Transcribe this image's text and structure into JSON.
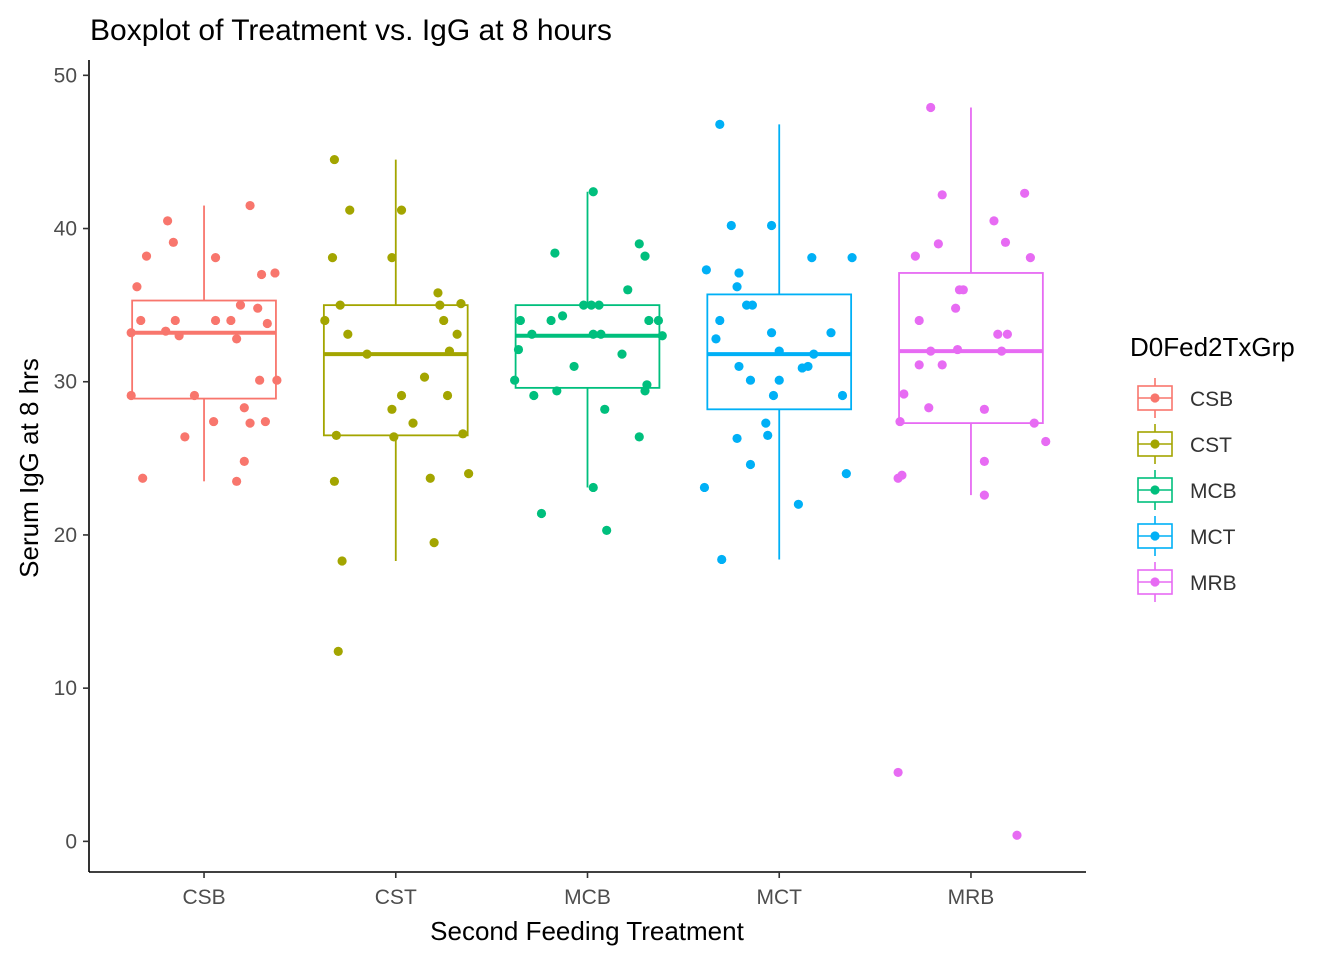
{
  "chart_data": {
    "type": "boxplot",
    "title": "Boxplot of Treatment vs. IgG at 8 hours",
    "xlabel": "Second Feeding Treatment",
    "ylabel": "Serum IgG at 8 hrs",
    "ylim": [
      -2,
      51
    ],
    "yticks": [
      0,
      10,
      20,
      30,
      40,
      50
    ],
    "categories": [
      "CSB",
      "CST",
      "MCB",
      "MCT",
      "MRB"
    ],
    "legend": {
      "title": "D0Fed2TxGrp",
      "position": "right"
    },
    "grid": false,
    "series": [
      {
        "name": "CSB",
        "color": "#F8766D",
        "box": {
          "lower_whisker": 23.5,
          "q1": 28.9,
          "median": 33.2,
          "q3": 35.3,
          "upper_whisker": 41.5
        },
        "points": [
          {
            "dx": -0.38,
            "y": 33.2
          },
          {
            "dx": -0.38,
            "y": 29.1
          },
          {
            "dx": -0.35,
            "y": 36.2
          },
          {
            "dx": -0.32,
            "y": 23.7
          },
          {
            "dx": -0.3,
            "y": 38.2
          },
          {
            "dx": -0.33,
            "y": 34.0
          },
          {
            "dx": -0.19,
            "y": 40.5
          },
          {
            "dx": -0.16,
            "y": 39.1
          },
          {
            "dx": -0.2,
            "y": 33.3
          },
          {
            "dx": -0.15,
            "y": 34.0
          },
          {
            "dx": -0.13,
            "y": 33.0
          },
          {
            "dx": -0.1,
            "y": 26.4
          },
          {
            "dx": -0.05,
            "y": 29.1
          },
          {
            "dx": 0.05,
            "y": 27.4
          },
          {
            "dx": 0.06,
            "y": 34.0
          },
          {
            "dx": 0.06,
            "y": 38.1
          },
          {
            "dx": 0.14,
            "y": 34.0
          },
          {
            "dx": 0.17,
            "y": 32.8
          },
          {
            "dx": 0.17,
            "y": 23.5
          },
          {
            "dx": 0.19,
            "y": 35.0
          },
          {
            "dx": 0.21,
            "y": 24.8
          },
          {
            "dx": 0.21,
            "y": 28.3
          },
          {
            "dx": 0.24,
            "y": 41.5
          },
          {
            "dx": 0.24,
            "y": 27.3
          },
          {
            "dx": 0.28,
            "y": 34.8
          },
          {
            "dx": 0.29,
            "y": 30.1
          },
          {
            "dx": 0.3,
            "y": 37.0
          },
          {
            "dx": 0.32,
            "y": 27.4
          },
          {
            "dx": 0.33,
            "y": 33.8
          },
          {
            "dx": 0.37,
            "y": 37.1
          },
          {
            "dx": 0.38,
            "y": 30.1
          }
        ]
      },
      {
        "name": "CST",
        "color": "#A3A500",
        "box": {
          "lower_whisker": 18.3,
          "q1": 26.5,
          "median": 31.8,
          "q3": 35.0,
          "upper_whisker": 44.5
        },
        "points": [
          {
            "dx": -0.37,
            "y": 34.0
          },
          {
            "dx": -0.33,
            "y": 38.1
          },
          {
            "dx": -0.32,
            "y": 44.5
          },
          {
            "dx": -0.32,
            "y": 23.5
          },
          {
            "dx": -0.31,
            "y": 26.5
          },
          {
            "dx": -0.29,
            "y": 35.0
          },
          {
            "dx": -0.3,
            "y": 12.4
          },
          {
            "dx": -0.28,
            "y": 18.3
          },
          {
            "dx": -0.25,
            "y": 33.1
          },
          {
            "dx": -0.24,
            "y": 41.2
          },
          {
            "dx": -0.15,
            "y": 31.8
          },
          {
            "dx": -0.02,
            "y": 38.1
          },
          {
            "dx": -0.02,
            "y": 28.2
          },
          {
            "dx": -0.01,
            "y": 26.4
          },
          {
            "dx": 0.03,
            "y": 41.2
          },
          {
            "dx": 0.03,
            "y": 29.1
          },
          {
            "dx": 0.09,
            "y": 27.3
          },
          {
            "dx": 0.15,
            "y": 30.3
          },
          {
            "dx": 0.18,
            "y": 23.7
          },
          {
            "dx": 0.2,
            "y": 19.5
          },
          {
            "dx": 0.22,
            "y": 35.8
          },
          {
            "dx": 0.23,
            "y": 35.0
          },
          {
            "dx": 0.25,
            "y": 34.0
          },
          {
            "dx": 0.27,
            "y": 29.1
          },
          {
            "dx": 0.28,
            "y": 32.0
          },
          {
            "dx": 0.32,
            "y": 33.1
          },
          {
            "dx": 0.34,
            "y": 35.1
          },
          {
            "dx": 0.35,
            "y": 26.6
          },
          {
            "dx": 0.38,
            "y": 24.0
          }
        ]
      },
      {
        "name": "MCB",
        "color": "#00BF7D",
        "box": {
          "lower_whisker": 23.1,
          "q1": 29.6,
          "median": 33.0,
          "q3": 35.0,
          "upper_whisker": 42.4
        },
        "points": [
          {
            "dx": -0.38,
            "y": 30.1
          },
          {
            "dx": -0.36,
            "y": 32.1
          },
          {
            "dx": -0.35,
            "y": 34.0
          },
          {
            "dx": -0.29,
            "y": 33.1
          },
          {
            "dx": -0.28,
            "y": 29.1
          },
          {
            "dx": -0.24,
            "y": 21.4
          },
          {
            "dx": -0.19,
            "y": 34.0
          },
          {
            "dx": -0.17,
            "y": 38.4
          },
          {
            "dx": -0.16,
            "y": 29.4
          },
          {
            "dx": -0.13,
            "y": 34.3
          },
          {
            "dx": -0.07,
            "y": 31.0
          },
          {
            "dx": -0.02,
            "y": 35.0
          },
          {
            "dx": 0.02,
            "y": 35.0
          },
          {
            "dx": 0.03,
            "y": 42.4
          },
          {
            "dx": 0.03,
            "y": 23.1
          },
          {
            "dx": 0.03,
            "y": 33.1
          },
          {
            "dx": 0.06,
            "y": 35.0
          },
          {
            "dx": 0.07,
            "y": 33.1
          },
          {
            "dx": 0.09,
            "y": 28.2
          },
          {
            "dx": 0.1,
            "y": 20.3
          },
          {
            "dx": 0.18,
            "y": 31.8
          },
          {
            "dx": 0.21,
            "y": 36.0
          },
          {
            "dx": 0.27,
            "y": 39.0
          },
          {
            "dx": 0.27,
            "y": 26.4
          },
          {
            "dx": 0.3,
            "y": 38.2
          },
          {
            "dx": 0.3,
            "y": 29.4
          },
          {
            "dx": 0.31,
            "y": 29.8
          },
          {
            "dx": 0.32,
            "y": 34.0
          },
          {
            "dx": 0.37,
            "y": 34.0
          },
          {
            "dx": 0.39,
            "y": 33.0
          }
        ]
      },
      {
        "name": "MCT",
        "color": "#00B0F6",
        "box": {
          "lower_whisker": 18.4,
          "q1": 28.2,
          "median": 31.8,
          "q3": 35.7,
          "upper_whisker": 46.8
        },
        "points": [
          {
            "dx": -0.39,
            "y": 23.1
          },
          {
            "dx": -0.38,
            "y": 37.3
          },
          {
            "dx": -0.33,
            "y": 32.8
          },
          {
            "dx": -0.31,
            "y": 34.0
          },
          {
            "dx": -0.31,
            "y": 46.8
          },
          {
            "dx": -0.3,
            "y": 18.4
          },
          {
            "dx": -0.25,
            "y": 40.2
          },
          {
            "dx": -0.22,
            "y": 26.3
          },
          {
            "dx": -0.22,
            "y": 36.2
          },
          {
            "dx": -0.21,
            "y": 37.1
          },
          {
            "dx": -0.21,
            "y": 31.0
          },
          {
            "dx": -0.17,
            "y": 35.0
          },
          {
            "dx": -0.15,
            "y": 30.1
          },
          {
            "dx": -0.15,
            "y": 24.6
          },
          {
            "dx": -0.14,
            "y": 35.0
          },
          {
            "dx": -0.07,
            "y": 27.3
          },
          {
            "dx": -0.06,
            "y": 26.5
          },
          {
            "dx": -0.04,
            "y": 33.2
          },
          {
            "dx": -0.04,
            "y": 40.2
          },
          {
            "dx": -0.03,
            "y": 29.1
          },
          {
            "dx": 0.0,
            "y": 32.0
          },
          {
            "dx": 0.0,
            "y": 30.1
          },
          {
            "dx": 0.1,
            "y": 22.0
          },
          {
            "dx": 0.12,
            "y": 30.9
          },
          {
            "dx": 0.15,
            "y": 31.0
          },
          {
            "dx": 0.17,
            "y": 38.1
          },
          {
            "dx": 0.18,
            "y": 31.8
          },
          {
            "dx": 0.27,
            "y": 33.2
          },
          {
            "dx": 0.33,
            "y": 29.1
          },
          {
            "dx": 0.35,
            "y": 24.0
          },
          {
            "dx": 0.38,
            "y": 38.1
          }
        ]
      },
      {
        "name": "MRB",
        "color": "#E76BF3",
        "box": {
          "lower_whisker": 22.6,
          "q1": 27.3,
          "median": 32.0,
          "q3": 37.1,
          "upper_whisker": 47.9
        },
        "points": [
          {
            "dx": -0.38,
            "y": 4.5
          },
          {
            "dx": -0.38,
            "y": 23.7
          },
          {
            "dx": -0.36,
            "y": 23.9
          },
          {
            "dx": -0.37,
            "y": 27.4
          },
          {
            "dx": -0.35,
            "y": 29.2
          },
          {
            "dx": -0.29,
            "y": 38.2
          },
          {
            "dx": -0.27,
            "y": 34.0
          },
          {
            "dx": -0.27,
            "y": 31.1
          },
          {
            "dx": -0.22,
            "y": 28.3
          },
          {
            "dx": -0.21,
            "y": 32.0
          },
          {
            "dx": -0.21,
            "y": 47.9
          },
          {
            "dx": -0.17,
            "y": 39.0
          },
          {
            "dx": -0.15,
            "y": 31.1
          },
          {
            "dx": -0.15,
            "y": 42.2
          },
          {
            "dx": -0.08,
            "y": 34.8
          },
          {
            "dx": -0.07,
            "y": 32.1
          },
          {
            "dx": -0.06,
            "y": 36.0
          },
          {
            "dx": -0.04,
            "y": 36.0
          },
          {
            "dx": 0.07,
            "y": 24.8
          },
          {
            "dx": 0.07,
            "y": 28.2
          },
          {
            "dx": 0.07,
            "y": 22.6
          },
          {
            "dx": 0.12,
            "y": 40.5
          },
          {
            "dx": 0.14,
            "y": 33.1
          },
          {
            "dx": 0.16,
            "y": 32.0
          },
          {
            "dx": 0.18,
            "y": 39.1
          },
          {
            "dx": 0.19,
            "y": 33.1
          },
          {
            "dx": 0.24,
            "y": 0.4
          },
          {
            "dx": 0.28,
            "y": 42.3
          },
          {
            "dx": 0.31,
            "y": 38.1
          },
          {
            "dx": 0.33,
            "y": 27.3
          },
          {
            "dx": 0.39,
            "y": 26.1
          }
        ]
      }
    ]
  }
}
